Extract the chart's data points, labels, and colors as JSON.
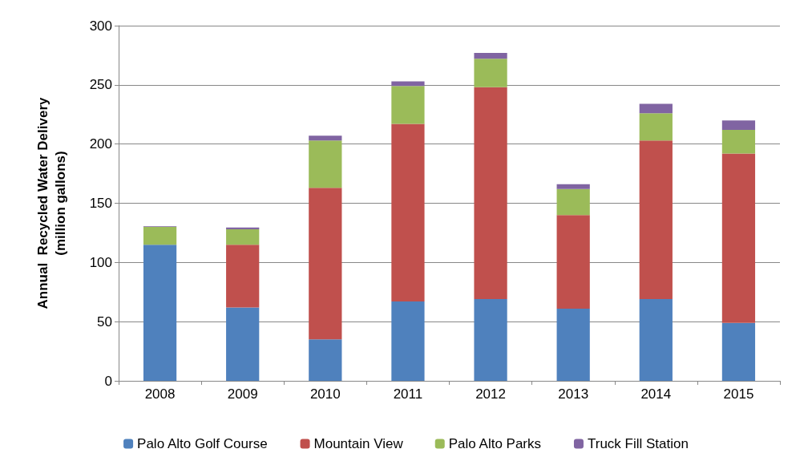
{
  "chart_data": {
    "type": "bar",
    "stacked": true,
    "ylabel": "Annual  Recycled Water Delivery\n(million gallons)",
    "categories": [
      "2008",
      "2009",
      "2010",
      "2011",
      "2012",
      "2013",
      "2014",
      "2015"
    ],
    "series": [
      {
        "name": "Palo Alto Golf Course",
        "color": "#4f81bd",
        "values": [
          115,
          62,
          35,
          67,
          69,
          61,
          69,
          49
        ]
      },
      {
        "name": "Mountain View",
        "color": "#c0504d",
        "values": [
          0,
          53,
          128,
          150,
          179,
          79,
          134,
          143
        ]
      },
      {
        "name": "Palo Alto Parks",
        "color": "#9bbb59",
        "values": [
          15,
          13,
          40,
          32,
          24,
          22,
          23,
          20
        ]
      },
      {
        "name": "Truck Fill Station",
        "color": "#8064a2",
        "values": [
          0.5,
          1.5,
          4,
          4,
          5,
          4,
          8,
          8
        ]
      }
    ],
    "ylim": [
      0,
      300
    ],
    "yticks": [
      0,
      50,
      100,
      150,
      200,
      250,
      300
    ],
    "grid": "y",
    "legend": "bottom"
  }
}
